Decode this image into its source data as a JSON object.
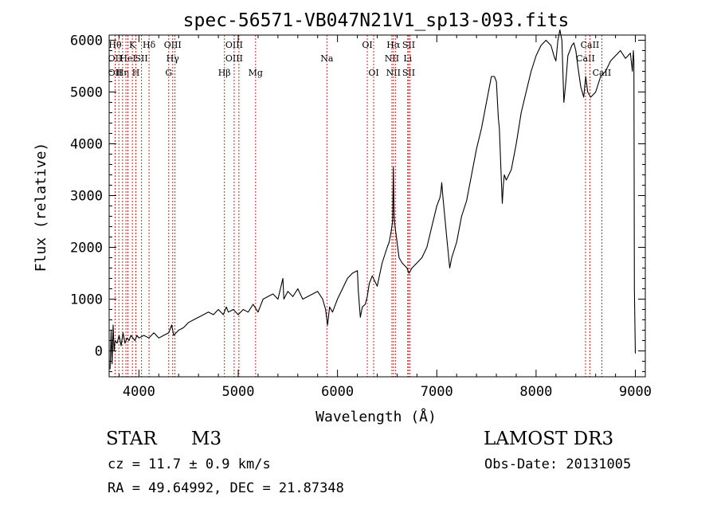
{
  "chart_data": {
    "type": "line",
    "title": "spec-56571-VB047N21V1_sp13-093.fits",
    "xlabel": "Wavelength (Å)",
    "ylabel": "Flux (relative)",
    "xlim": [
      3700,
      9100
    ],
    "ylim": [
      -500,
      6100
    ],
    "x_ticks": [
      4000,
      5000,
      6000,
      7000,
      8000,
      9000
    ],
    "y_ticks": [
      0,
      1000,
      2000,
      3000,
      4000,
      5000,
      6000
    ],
    "grid": false,
    "line_color": "#000000",
    "marker_color": "#cc2222",
    "series": [
      {
        "name": "flux",
        "x": [
          3710,
          3720,
          3730,
          3740,
          3750,
          3760,
          3780,
          3800,
          3820,
          3840,
          3860,
          3880,
          3900,
          3920,
          3940,
          3960,
          3980,
          4000,
          4050,
          4100,
          4150,
          4200,
          4250,
          4300,
          4330,
          4350,
          4400,
          4450,
          4500,
          4550,
          4600,
          4650,
          4700,
          4750,
          4800,
          4850,
          4880,
          4900,
          4950,
          5000,
          5050,
          5100,
          5150,
          5200,
          5250,
          5300,
          5350,
          5400,
          5450,
          5460,
          5500,
          5550,
          5600,
          5650,
          5700,
          5750,
          5800,
          5850,
          5880,
          5900,
          5920,
          5950,
          6000,
          6050,
          6100,
          6150,
          6200,
          6210,
          6230,
          6250,
          6280,
          6300,
          6320,
          6350,
          6400,
          6450,
          6500,
          6520,
          6540,
          6555,
          6563,
          6570,
          6580,
          6600,
          6620,
          6650,
          6700,
          6720,
          6750,
          6800,
          6850,
          6900,
          6950,
          7000,
          7030,
          7040,
          7050,
          7060,
          7100,
          7130,
          7150,
          7200,
          7250,
          7300,
          7350,
          7400,
          7450,
          7500,
          7550,
          7580,
          7600,
          7620,
          7630,
          7650,
          7660,
          7670,
          7680,
          7700,
          7750,
          7800,
          7850,
          7900,
          7950,
          8000,
          8050,
          8100,
          8150,
          8180,
          8200,
          8220,
          8240,
          8260,
          8280,
          8300,
          8320,
          8340,
          8360,
          8380,
          8400,
          8420,
          8450,
          8480,
          8500,
          8520,
          8550,
          8600,
          8650,
          8700,
          8750,
          8800,
          8850,
          8900,
          8950,
          8970,
          8980,
          8985,
          8990,
          9000
        ],
        "y": [
          -350,
          400,
          -250,
          500,
          0,
          200,
          150,
          300,
          100,
          350,
          150,
          250,
          200,
          300,
          250,
          200,
          300,
          250,
          300,
          250,
          350,
          250,
          300,
          350,
          500,
          300,
          400,
          450,
          550,
          600,
          650,
          700,
          750,
          700,
          800,
          700,
          850,
          750,
          800,
          700,
          800,
          750,
          900,
          750,
          1000,
          1050,
          1100,
          1000,
          1400,
          1000,
          1150,
          1050,
          1200,
          1000,
          1050,
          1100,
          1150,
          1000,
          800,
          500,
          850,
          750,
          1000,
          1200,
          1400,
          1500,
          1550,
          1150,
          650,
          850,
          900,
          1050,
          1300,
          1450,
          1250,
          1700,
          2000,
          2100,
          2300,
          2500,
          3550,
          2600,
          2400,
          2100,
          1800,
          1700,
          1600,
          1500,
          1600,
          1700,
          1800,
          2000,
          2400,
          2800,
          2950,
          3050,
          3250,
          3000,
          2200,
          1600,
          1800,
          2100,
          2600,
          2900,
          3400,
          3900,
          4300,
          4800,
          5300,
          5300,
          5200,
          4500,
          4300,
          3300,
          2850,
          3200,
          3400,
          3300,
          3500,
          4000,
          4600,
          5000,
          5400,
          5700,
          5900,
          6000,
          5900,
          5700,
          5600,
          6000,
          6200,
          6000,
          4800,
          5200,
          5700,
          5800,
          5900,
          5950,
          5800,
          5500,
          5100,
          4900,
          5300,
          5000,
          4900,
          5000,
          5300,
          5400,
          5600,
          5700,
          5800,
          5650,
          5750,
          5400,
          5800,
          5600,
          1200,
          -50
        ]
      }
    ],
    "lines": [
      {
        "x": 3760,
        "top": "Hθ",
        "mid": "OII",
        "bot": "OII"
      },
      {
        "x": 3798,
        "top": "",
        "mid": "",
        "bot": ""
      },
      {
        "x": 3835,
        "top": "",
        "mid": "",
        "bot": "Hη"
      },
      {
        "x": 3869,
        "top": "",
        "mid": "",
        "bot": ""
      },
      {
        "x": 3889,
        "top": "",
        "mid": "HeI",
        "bot": ""
      },
      {
        "x": 3934,
        "top": "K",
        "mid": "",
        "bot": ""
      },
      {
        "x": 3969,
        "top": "",
        "mid": "",
        "bot": "H"
      },
      {
        "x": 4026,
        "top": "",
        "mid": "SII",
        "bot": ""
      },
      {
        "x": 4102,
        "top": "Hδ",
        "mid": "",
        "bot": ""
      },
      {
        "x": 4300,
        "top": "",
        "mid": "",
        "bot": "G"
      },
      {
        "x": 4340,
        "top": "OIII",
        "mid": "Hγ",
        "bot": ""
      },
      {
        "x": 4363,
        "top": "",
        "mid": "",
        "bot": ""
      },
      {
        "x": 4861,
        "top": "",
        "mid": "",
        "bot": "Hβ"
      },
      {
        "x": 4959,
        "top": "OIII",
        "mid": "OIII",
        "bot": ""
      },
      {
        "x": 5007,
        "top": "",
        "mid": "",
        "bot": ""
      },
      {
        "x": 5175,
        "top": "",
        "mid": "",
        "bot": "Mg"
      },
      {
        "x": 5893,
        "top": "",
        "mid": "Na",
        "bot": ""
      },
      {
        "x": 6300,
        "top": "OI",
        "mid": "",
        "bot": ""
      },
      {
        "x": 6364,
        "top": "",
        "mid": "",
        "bot": "OI"
      },
      {
        "x": 6548,
        "top": "",
        "mid": "NII",
        "bot": ""
      },
      {
        "x": 6563,
        "top": "Hα",
        "mid": "",
        "bot": "NII"
      },
      {
        "x": 6583,
        "top": "",
        "mid": "",
        "bot": ""
      },
      {
        "x": 6707,
        "top": "",
        "mid": "Li",
        "bot": ""
      },
      {
        "x": 6717,
        "top": "SII",
        "mid": "",
        "bot": "SII"
      },
      {
        "x": 6731,
        "top": "",
        "mid": "",
        "bot": ""
      },
      {
        "x": 8498,
        "top": "",
        "mid": "CaII",
        "bot": ""
      },
      {
        "x": 8542,
        "top": "CaII",
        "mid": "",
        "bot": ""
      },
      {
        "x": 8662,
        "top": "",
        "mid": "",
        "bot": "CaII"
      }
    ]
  },
  "info": {
    "object_class": "STAR",
    "subclass": "M3",
    "survey": "LAMOST DR3",
    "cz": "cz = 11.7 ± 0.9 km/s",
    "obs_date": "Obs-Date: 20131005",
    "radec": "RA =  49.64992, DEC =  21.87348"
  }
}
